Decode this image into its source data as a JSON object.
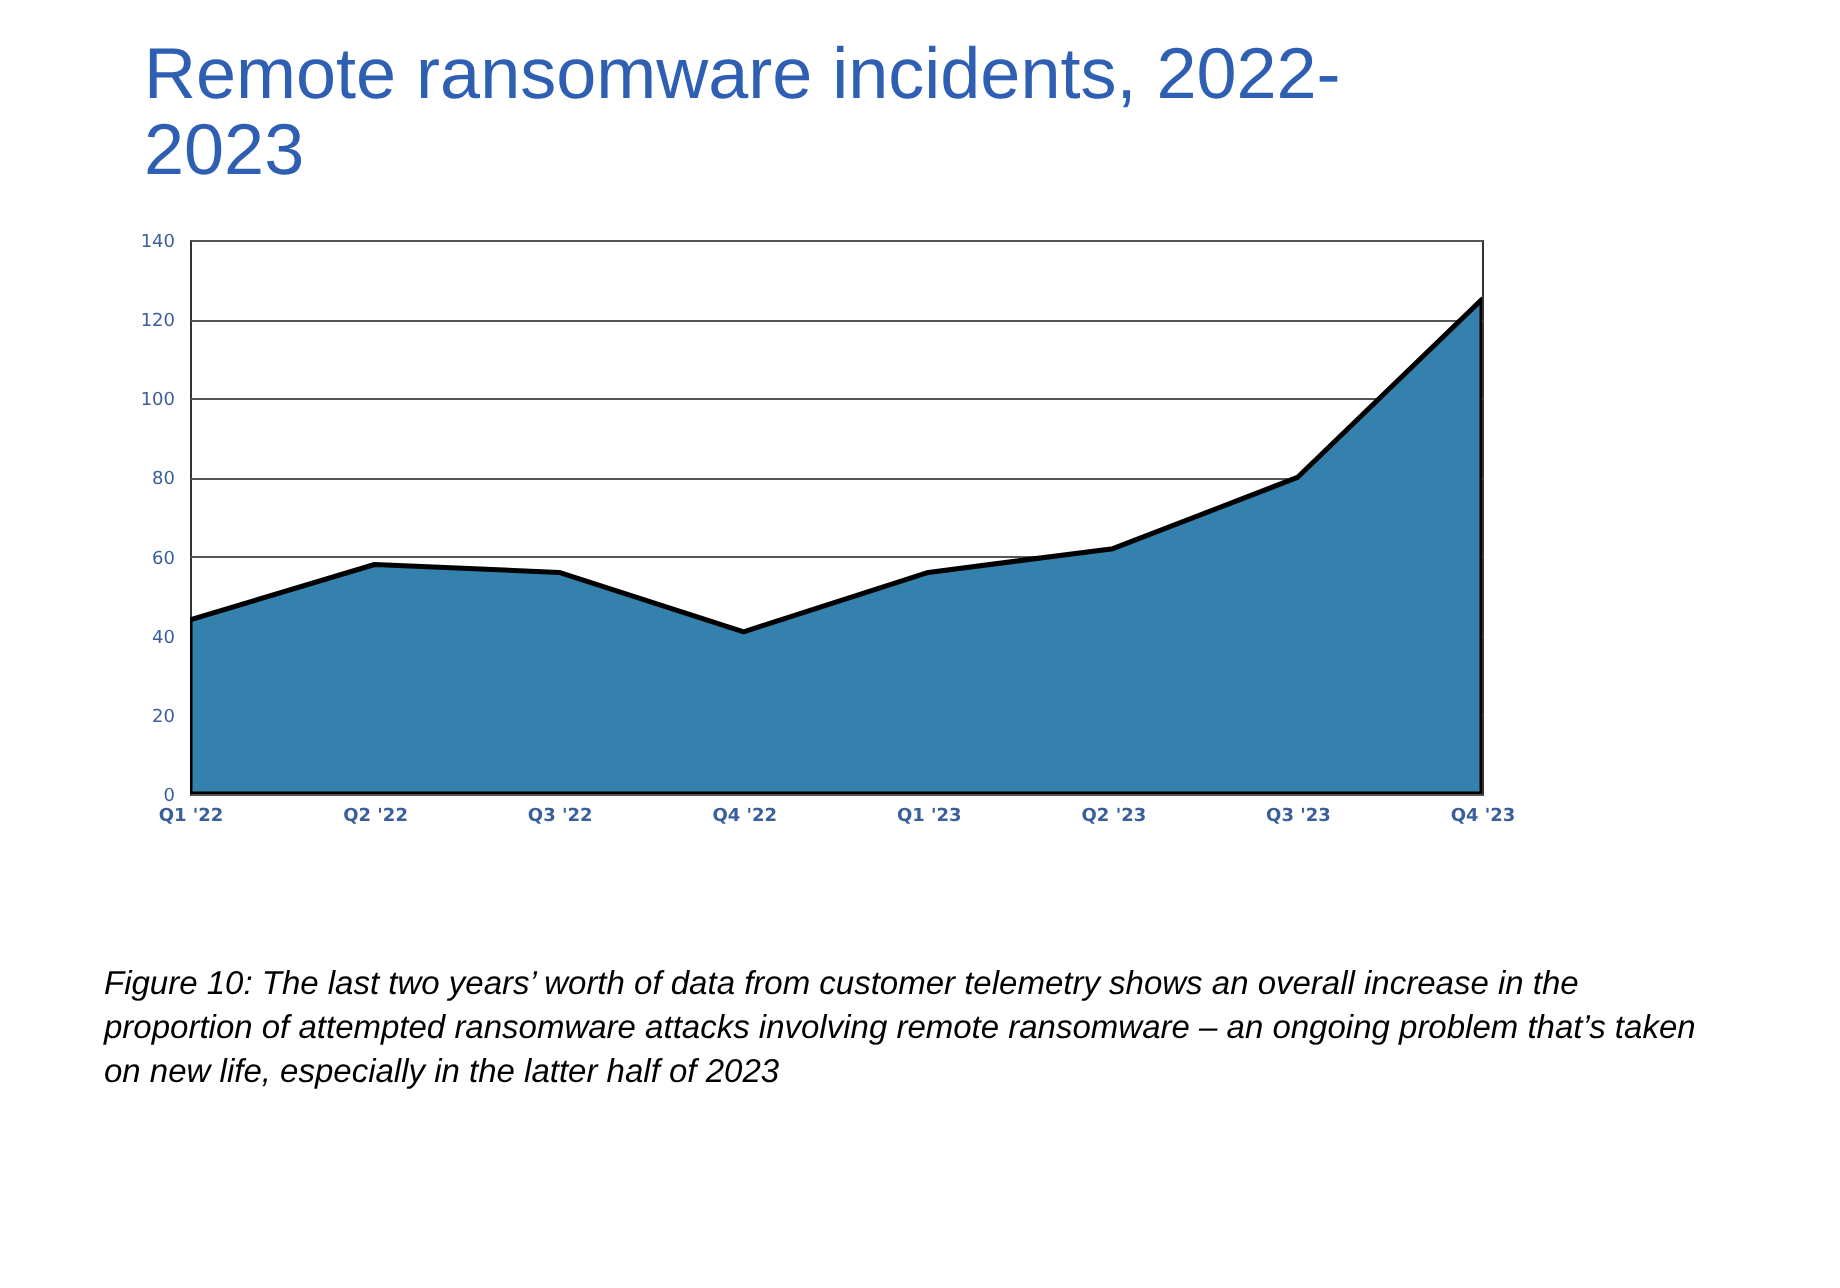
{
  "chart_data": {
    "type": "area",
    "title": "Remote ransomware incidents, 2022-2023",
    "categories": [
      "Q1 '22",
      "Q2 '22",
      "Q3 '22",
      "Q4 '22",
      "Q1 '23",
      "Q2 '23",
      "Q3 '23",
      "Q4 '23"
    ],
    "series": [
      {
        "color": "#3581ad",
        "values": [
          44,
          58,
          56,
          41,
          56,
          62,
          80,
          125
        ]
      }
    ],
    "ylim": [
      0,
      140
    ],
    "yticks": [
      0,
      20,
      40,
      60,
      80,
      100,
      120,
      140
    ],
    "grid": "y",
    "annotations": [
      "Figure 10: The last two years’ worth of data from customer telemetry shows an overall increase in the proportion of attempted ransomware attacks involving remote ransomware – an ongoing problem that’s taken on new life, especially in the latter half of 2023"
    ]
  }
}
